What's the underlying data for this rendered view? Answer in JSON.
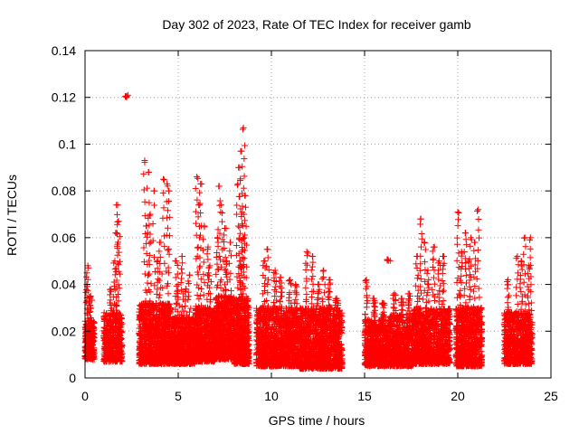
{
  "chart_data": {
    "type": "scatter",
    "title": "Day 302 of 2023, Rate Of TEC Index for receiver gamb",
    "xlabel": "GPS time / hours",
    "ylabel": "ROTI / TECUs",
    "xlim": [
      0,
      25
    ],
    "ylim": [
      0,
      0.14
    ],
    "xticks": [
      0,
      5,
      10,
      15,
      20,
      25
    ],
    "yticks": [
      0,
      0.02,
      0.04,
      0.06,
      0.08,
      0.1,
      0.12,
      0.14
    ],
    "xtick_labels": [
      "0",
      "5",
      "10",
      "15",
      "20",
      "25"
    ],
    "ytick_labels": [
      "0",
      "0.02",
      "0.04",
      "0.06",
      "0.08",
      "0.1",
      "0.12",
      "0.14"
    ],
    "grid": true,
    "marker": "plus",
    "marker_color": "#ff0000",
    "series_name": "ROTI",
    "clusters": [
      {
        "x": [
          0.0,
          0.5
        ],
        "base": [
          0.008,
          0.025
        ],
        "peaks": [
          [
            0.15,
            0.048
          ],
          [
            0.1,
            0.04
          ],
          [
            0.3,
            0.035
          ]
        ],
        "density": 260
      },
      {
        "x": [
          1.0,
          2.0
        ],
        "base": [
          0.007,
          0.028
        ],
        "peaks": [
          [
            1.75,
            0.074
          ],
          [
            1.8,
            0.067
          ],
          [
            1.7,
            0.062
          ],
          [
            1.6,
            0.05
          ],
          [
            1.4,
            0.038
          ]
        ],
        "density": 420
      },
      {
        "x": [
          2.1,
          2.3
        ],
        "base": [
          0.12,
          0.121
        ],
        "peaks": [],
        "density": 6
      },
      {
        "x": [
          2.9,
          4.6
        ],
        "base": [
          0.006,
          0.032
        ],
        "peaks": [
          [
            3.2,
            0.093
          ],
          [
            3.4,
            0.088
          ],
          [
            3.7,
            0.08
          ],
          [
            4.2,
            0.085
          ],
          [
            4.4,
            0.083
          ],
          [
            4.5,
            0.08
          ],
          [
            3.5,
            0.07
          ],
          [
            4.0,
            0.058
          ],
          [
            3.9,
            0.05
          ],
          [
            3.3,
            0.065
          ]
        ],
        "density": 900
      },
      {
        "x": [
          4.6,
          5.9
        ],
        "base": [
          0.006,
          0.026
        ],
        "peaks": [
          [
            4.9,
            0.05
          ],
          [
            5.2,
            0.052
          ],
          [
            5.6,
            0.044
          ],
          [
            5.0,
            0.04
          ],
          [
            5.4,
            0.038
          ]
        ],
        "density": 650
      },
      {
        "x": [
          5.9,
          7.0
        ],
        "base": [
          0.007,
          0.03
        ],
        "peaks": [
          [
            6.0,
            0.086
          ],
          [
            6.2,
            0.083
          ],
          [
            6.1,
            0.074
          ],
          [
            6.4,
            0.065
          ],
          [
            6.6,
            0.056
          ],
          [
            6.7,
            0.048
          ]
        ],
        "density": 600
      },
      {
        "x": [
          7.0,
          8.0
        ],
        "base": [
          0.008,
          0.035
        ],
        "peaks": [
          [
            7.2,
            0.082
          ],
          [
            7.3,
            0.074
          ],
          [
            7.5,
            0.064
          ],
          [
            7.1,
            0.06
          ],
          [
            7.8,
            0.058
          ],
          [
            7.6,
            0.05
          ]
        ],
        "density": 600
      },
      {
        "x": [
          8.0,
          8.8
        ],
        "base": [
          0.006,
          0.034
        ],
        "peaks": [
          [
            8.5,
            0.107
          ],
          [
            8.4,
            0.097
          ],
          [
            8.3,
            0.09
          ],
          [
            8.2,
            0.083
          ],
          [
            8.6,
            0.078
          ],
          [
            8.4,
            0.07
          ],
          [
            8.5,
            0.06
          ],
          [
            8.3,
            0.05
          ]
        ],
        "density": 500
      },
      {
        "x": [
          9.2,
          11.5
        ],
        "base": [
          0.005,
          0.03
        ],
        "peaks": [
          [
            9.8,
            0.055
          ],
          [
            9.6,
            0.05
          ],
          [
            10.2,
            0.046
          ],
          [
            10.5,
            0.043
          ],
          [
            11.0,
            0.042
          ],
          [
            11.3,
            0.04
          ]
        ],
        "density": 1100
      },
      {
        "x": [
          11.5,
          13.8
        ],
        "base": [
          0.004,
          0.03
        ],
        "peaks": [
          [
            11.9,
            0.054
          ],
          [
            12.2,
            0.052
          ],
          [
            12.8,
            0.046
          ],
          [
            13.1,
            0.042
          ],
          [
            12.5,
            0.04
          ],
          [
            13.5,
            0.034
          ]
        ],
        "density": 1100
      },
      {
        "x": [
          15.0,
          16.2
        ],
        "base": [
          0.005,
          0.025
        ],
        "peaks": [
          [
            15.1,
            0.042
          ],
          [
            15.5,
            0.034
          ],
          [
            16.0,
            0.032
          ]
        ],
        "density": 520
      },
      {
        "x": [
          16.2,
          16.4
        ],
        "base": [
          0.05,
          0.051
        ],
        "peaks": [],
        "density": 5
      },
      {
        "x": [
          16.2,
          17.6
        ],
        "base": [
          0.005,
          0.027
        ],
        "peaks": [
          [
            16.6,
            0.036
          ],
          [
            17.0,
            0.034
          ],
          [
            17.4,
            0.036
          ]
        ],
        "density": 580
      },
      {
        "x": [
          17.6,
          19.6
        ],
        "base": [
          0.006,
          0.03
        ],
        "peaks": [
          [
            18.0,
            0.068
          ],
          [
            18.2,
            0.058
          ],
          [
            17.8,
            0.052
          ],
          [
            18.7,
            0.056
          ],
          [
            19.0,
            0.05
          ],
          [
            19.2,
            0.052
          ],
          [
            18.4,
            0.046
          ]
        ],
        "density": 900
      },
      {
        "x": [
          19.9,
          21.3
        ],
        "base": [
          0.005,
          0.03
        ],
        "peaks": [
          [
            20.0,
            0.071
          ],
          [
            21.1,
            0.072
          ],
          [
            20.4,
            0.062
          ],
          [
            20.7,
            0.06
          ],
          [
            20.9,
            0.058
          ],
          [
            20.2,
            0.054
          ],
          [
            20.6,
            0.05
          ]
        ],
        "density": 700
      },
      {
        "x": [
          22.5,
          24.0
        ],
        "base": [
          0.006,
          0.028
        ],
        "peaks": [
          [
            23.6,
            0.06
          ],
          [
            23.9,
            0.06
          ],
          [
            23.2,
            0.052
          ],
          [
            23.4,
            0.05
          ],
          [
            23.8,
            0.048
          ],
          [
            22.7,
            0.042
          ]
        ],
        "density": 700
      }
    ]
  }
}
